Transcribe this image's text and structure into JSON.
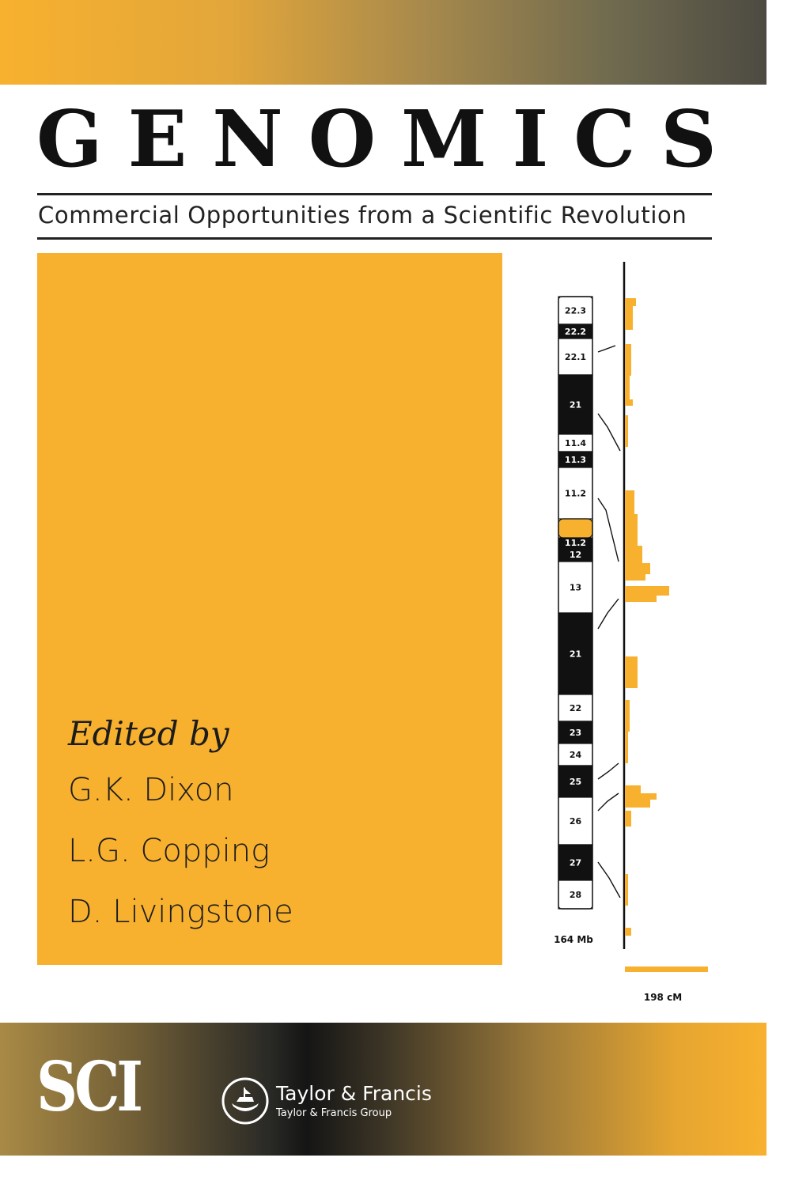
{
  "cover": {
    "title_letters": [
      "G",
      "E",
      "N",
      "O",
      "M",
      "I",
      "C",
      "S"
    ],
    "subtitle": "Commercial Opportunities from a Scientific Revolution",
    "edited_by": "Edited by",
    "editors": [
      "G.K. Dixon",
      "L.G. Copping",
      "D. Livingstone"
    ]
  },
  "ideogram": {
    "bands": [
      {
        "label": "22.3",
        "fill": "white"
      },
      {
        "label": "22.2",
        "fill": "black"
      },
      {
        "label": "22.1",
        "fill": "white"
      },
      {
        "label": "21",
        "fill": "black"
      },
      {
        "label": "11.4",
        "fill": "white"
      },
      {
        "label": "11.3",
        "fill": "black"
      },
      {
        "label": "11.2",
        "fill": "white"
      },
      {
        "label": "11.2",
        "fill": "black"
      },
      {
        "label": "12",
        "fill": "black"
      },
      {
        "label": "13",
        "fill": "white"
      },
      {
        "label": "21",
        "fill": "black"
      },
      {
        "label": "22",
        "fill": "white"
      },
      {
        "label": "23",
        "fill": "black"
      },
      {
        "label": "24",
        "fill": "white"
      },
      {
        "label": "25",
        "fill": "black"
      },
      {
        "label": "26",
        "fill": "white"
      },
      {
        "label": "27",
        "fill": "black"
      },
      {
        "label": "28",
        "fill": "white"
      }
    ],
    "physical_length_label": "164 Mb",
    "genetic_length_label": "198 cM"
  },
  "publisher": {
    "society_logo_text": "SCI",
    "name": "Taylor & Francis",
    "group": "Taylor & Francis Group"
  },
  "colors": {
    "accent_orange": "#f8b12f",
    "ink": "#111111"
  }
}
